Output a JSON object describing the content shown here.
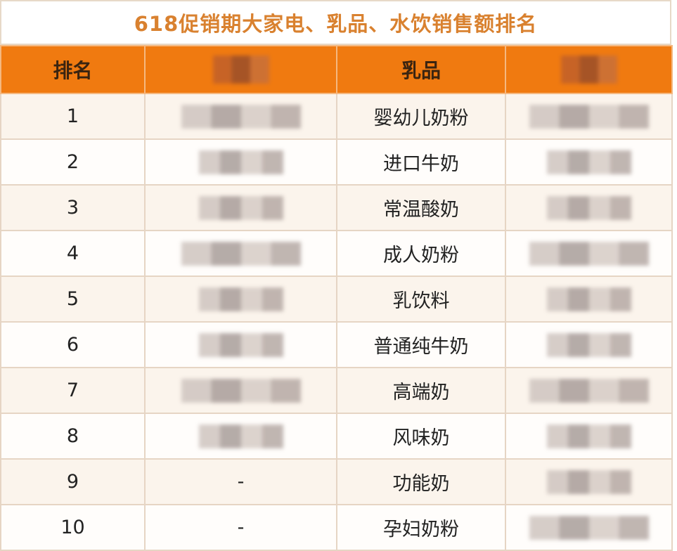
{
  "title": "618促销期大家电、乳品、水饮销售额排名",
  "colors": {
    "header_bg": "#f07a10",
    "title_text": "#d9812f",
    "row_alt": "#fbf4ec"
  },
  "headers": [
    "排名",
    "",
    "乳品",
    ""
  ],
  "rows": [
    {
      "rank": "1",
      "col2": "",
      "dairy": "婴幼儿奶粉",
      "col4": ""
    },
    {
      "rank": "2",
      "col2": "",
      "dairy": "进口牛奶",
      "col4": ""
    },
    {
      "rank": "3",
      "col2": "",
      "dairy": "常温酸奶",
      "col4": ""
    },
    {
      "rank": "4",
      "col2": "",
      "dairy": "成人奶粉",
      "col4": ""
    },
    {
      "rank": "5",
      "col2": "",
      "dairy": "乳饮料",
      "col4": ""
    },
    {
      "rank": "6",
      "col2": "",
      "dairy": "普通纯牛奶",
      "col4": ""
    },
    {
      "rank": "7",
      "col2": "",
      "dairy": "高端奶",
      "col4": ""
    },
    {
      "rank": "8",
      "col2": "",
      "dairy": "风味奶",
      "col4": ""
    },
    {
      "rank": "9",
      "col2": "-",
      "dairy": "功能奶",
      "col4": ""
    },
    {
      "rank": "10",
      "col2": "-",
      "dairy": "孕妇奶粉",
      "col4": ""
    }
  ]
}
